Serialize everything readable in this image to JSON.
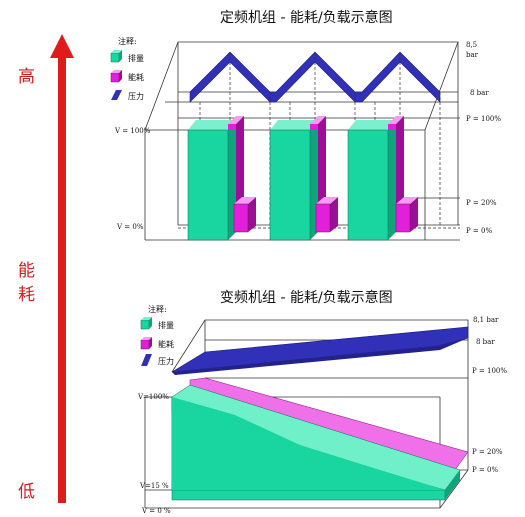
{
  "side_scale": {
    "high": "高",
    "mid_line1": "能",
    "mid_line2": "耗",
    "low": "低",
    "arrow_color": "#e01b1b"
  },
  "colors": {
    "displacement": "#19d6a0",
    "energy": "#e21fd9",
    "pressure": "#3030b8"
  },
  "fixed": {
    "title": "定频机组 - 能耗/负载示意图",
    "legend_title": "注释:",
    "legend": [
      "排量",
      "能耗",
      "压力"
    ],
    "labels": {
      "v100": "V = 100%",
      "v0": "V = 0%",
      "p_high": "8,5",
      "p_high_unit": "bar",
      "p_low": "8 bar",
      "p100": "P = 100%",
      "p20": "P = 20%",
      "p0": "P = 0%"
    }
  },
  "variable": {
    "title": "变频机组 - 能耗/负载示意图",
    "legend_title": "注释:",
    "legend": [
      "排量",
      "能耗",
      "压力"
    ],
    "labels": {
      "p_high": "8,1 bar",
      "p_low": "8 bar",
      "p100": "P = 100%",
      "v100": "V=100%",
      "p20": "P = 20%",
      "p0": "P = 0%",
      "v15": "V=15 %",
      "v0": "V = 0 %"
    }
  }
}
